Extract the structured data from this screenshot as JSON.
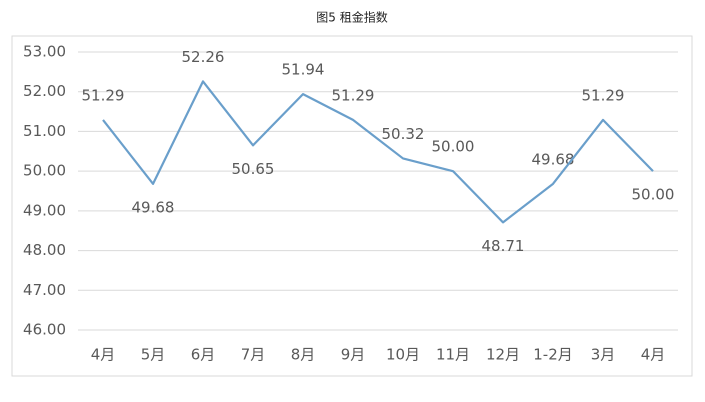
{
  "chart_data": {
    "type": "line",
    "title": "图5 租金指数",
    "categories": [
      "4月",
      "5月",
      "6月",
      "7月",
      "8月",
      "9月",
      "10月",
      "11月",
      "12月",
      "1-2月",
      "3月",
      "4月"
    ],
    "values": [
      51.29,
      49.68,
      52.26,
      50.65,
      51.94,
      51.29,
      50.32,
      50,
      48.71,
      49.68,
      51.29,
      50
    ],
    "value_labels": [
      "51.29",
      "49.68",
      "52.26",
      "50.65",
      "51.94",
      "51.29",
      "50.32",
      "50.00",
      "48.71",
      "49.68",
      "51.29",
      "50.00"
    ],
    "color": "#6a9fcb",
    "ylim": [
      46,
      53
    ],
    "yticks": [
      {
        "value": 46,
        "label": "46.00"
      },
      {
        "value": 47,
        "label": "47.00"
      },
      {
        "value": 48,
        "label": "48.00"
      },
      {
        "value": 49,
        "label": "49.00"
      },
      {
        "value": 50,
        "label": "50.00"
      },
      {
        "value": 51,
        "label": "51.00"
      },
      {
        "value": 52,
        "label": "52.00"
      },
      {
        "value": 53,
        "label": "53.00"
      }
    ],
    "grid": true
  }
}
